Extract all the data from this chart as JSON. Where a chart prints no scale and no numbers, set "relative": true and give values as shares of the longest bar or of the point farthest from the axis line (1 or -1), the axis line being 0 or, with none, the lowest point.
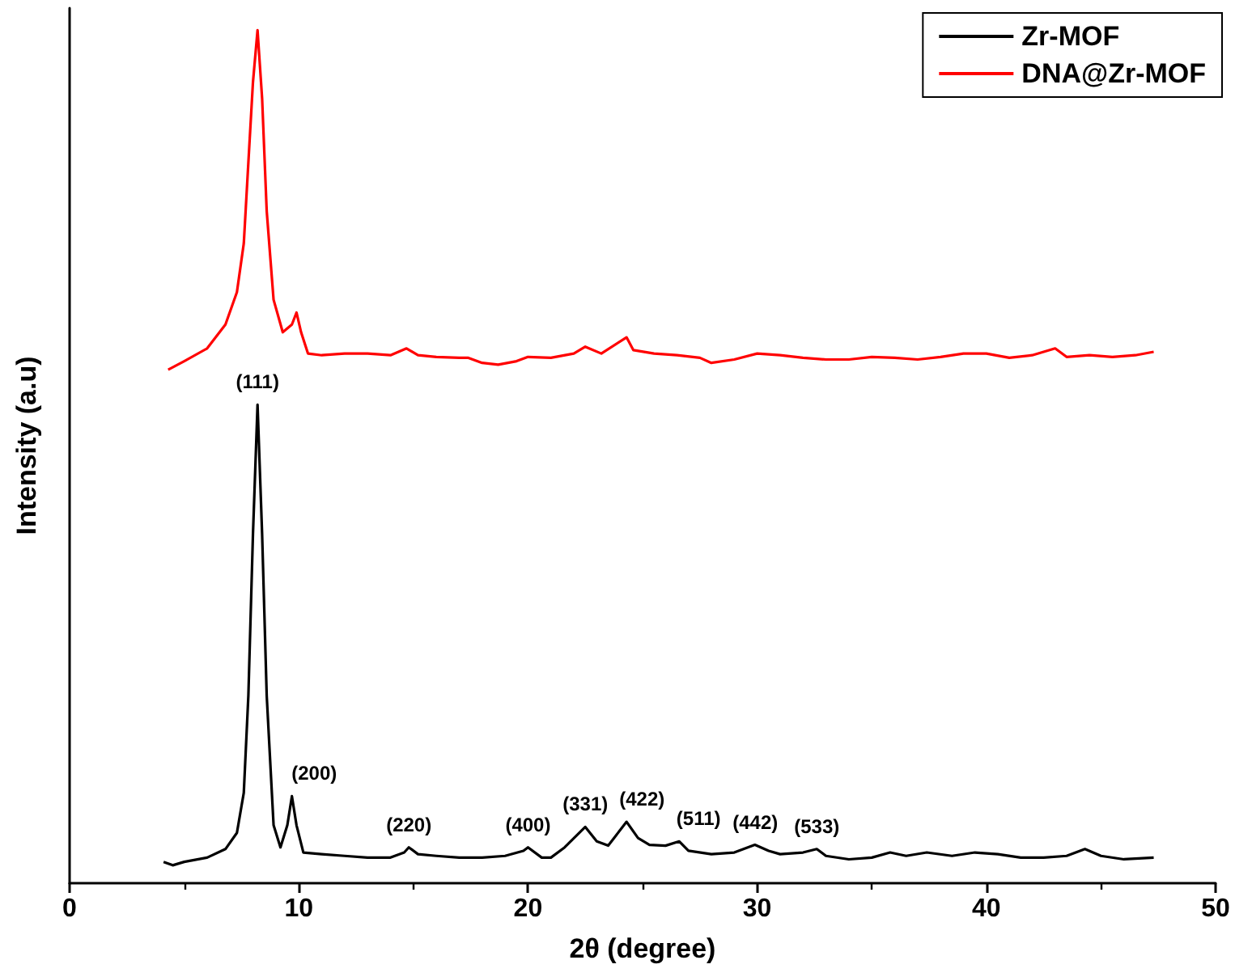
{
  "chart_data": {
    "type": "line",
    "relative": true,
    "xlabel": "2θ (degree)",
    "ylabel": "Intensity (a.u)",
    "xlim": [
      0,
      50
    ],
    "xticks": [
      0,
      10,
      20,
      30,
      40,
      50
    ],
    "legend": "top right",
    "grid": false,
    "marker": "none",
    "line_style": "solid",
    "series": [
      {
        "name": "Zr-MOF",
        "color": "#000000",
        "x": [
          4.1,
          4.5,
          5,
          6,
          6.8,
          7.3,
          7.6,
          7.8,
          8.0,
          8.2,
          8.4,
          8.6,
          8.9,
          9.2,
          9.5,
          9.7,
          9.9,
          10.2,
          11,
          12,
          13,
          14,
          14.6,
          14.8,
          15.2,
          16,
          17,
          18,
          19,
          19.8,
          20,
          20.6,
          21,
          21.6,
          22.5,
          23,
          23.5,
          24.3,
          24.8,
          25.3,
          26,
          26.6,
          27,
          28,
          29,
          29.9,
          30.5,
          31,
          32,
          32.6,
          33,
          34,
          35,
          35.8,
          36.5,
          37.4,
          38.5,
          39.5,
          40.5,
          41.5,
          42.5,
          43.5,
          44.3,
          45,
          46,
          47.3
        ],
        "values": [
          0.025,
          0.021,
          0.025,
          0.03,
          0.04,
          0.059,
          0.106,
          0.22,
          0.409,
          0.561,
          0.409,
          0.22,
          0.068,
          0.042,
          0.068,
          0.102,
          0.068,
          0.036,
          0.034,
          0.032,
          0.03,
          0.03,
          0.036,
          0.042,
          0.034,
          0.032,
          0.03,
          0.03,
          0.032,
          0.038,
          0.042,
          0.03,
          0.03,
          0.042,
          0.066,
          0.049,
          0.044,
          0.072,
          0.053,
          0.045,
          0.044,
          0.049,
          0.038,
          0.034,
          0.036,
          0.045,
          0.038,
          0.034,
          0.036,
          0.04,
          0.032,
          0.028,
          0.03,
          0.036,
          0.032,
          0.036,
          0.032,
          0.036,
          0.034,
          0.03,
          0.03,
          0.032,
          0.04,
          0.032,
          0.028,
          0.03
        ]
      },
      {
        "name": "DNA@Zr-MOF",
        "color": "#ff0000",
        "x": [
          4.3,
          5,
          6,
          6.8,
          7.3,
          7.6,
          7.8,
          8.0,
          8.2,
          8.4,
          8.6,
          8.9,
          9.3,
          9.7,
          9.9,
          10.1,
          10.4,
          11,
          12,
          13,
          14,
          14.7,
          15.2,
          16,
          17,
          17.4,
          18,
          18.7,
          19.5,
          20,
          21,
          22,
          22.5,
          23.2,
          24.3,
          24.6,
          25.5,
          26.5,
          27.5,
          28,
          29,
          30,
          31,
          32,
          33,
          34,
          35,
          36,
          37,
          38,
          39,
          40,
          41,
          42,
          43,
          43.5,
          44.5,
          45.5,
          46.5,
          47.3
        ],
        "values": [
          0.602,
          0.612,
          0.627,
          0.655,
          0.693,
          0.75,
          0.845,
          0.939,
          1,
          0.92,
          0.788,
          0.684,
          0.646,
          0.655,
          0.669,
          0.646,
          0.621,
          0.619,
          0.621,
          0.621,
          0.619,
          0.627,
          0.619,
          0.617,
          0.616,
          0.616,
          0.61,
          0.608,
          0.612,
          0.617,
          0.616,
          0.621,
          0.629,
          0.621,
          0.64,
          0.625,
          0.621,
          0.619,
          0.616,
          0.61,
          0.614,
          0.621,
          0.619,
          0.616,
          0.614,
          0.614,
          0.617,
          0.616,
          0.614,
          0.617,
          0.621,
          0.621,
          0.616,
          0.619,
          0.627,
          0.617,
          0.619,
          0.617,
          0.619,
          0.623
        ]
      }
    ],
    "annotations": [
      {
        "text": "(111)",
        "x": 8.2,
        "y": 0.561
      },
      {
        "text": "(200)",
        "x": 9.7,
        "y": 0.102
      },
      {
        "text": "(220)",
        "x": 14.8,
        "y": 0.042
      },
      {
        "text": "(400)",
        "x": 20,
        "y": 0.042
      },
      {
        "text": "(331)",
        "x": 22.5,
        "y": 0.066
      },
      {
        "text": "(422)",
        "x": 24.3,
        "y": 0.072
      },
      {
        "text": "(511)",
        "x": 26.6,
        "y": 0.049
      },
      {
        "text": "(442)",
        "x": 29.9,
        "y": 0.045
      },
      {
        "text": "(533)",
        "x": 32.6,
        "y": 0.04
      }
    ]
  }
}
